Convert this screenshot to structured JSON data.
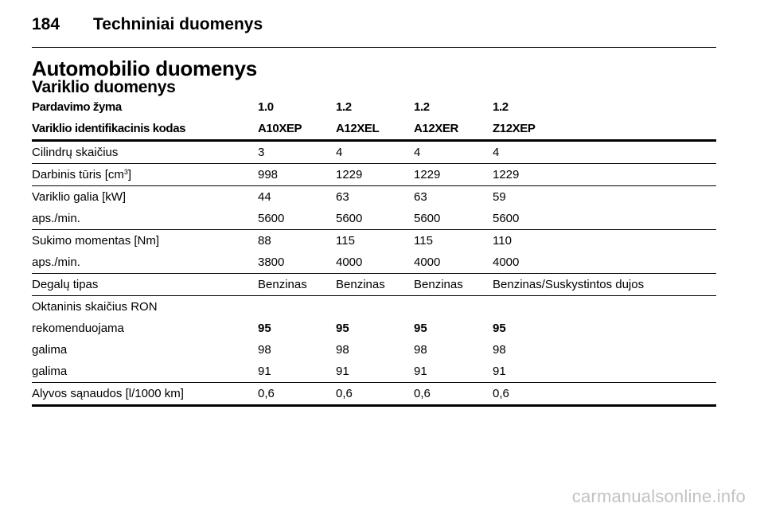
{
  "header": {
    "page_number": "184",
    "chapter_title": "Techniniai duomenys"
  },
  "section_title": "Automobilio duomenys",
  "subsection_title": "Variklio duomenys",
  "table": {
    "header_rows": [
      [
        "Pardavimo žyma",
        "1.0",
        "1.2",
        "1.2",
        "1.2"
      ],
      [
        "Variklio identifikacinis kodas",
        "A10XEP",
        "A12XEL",
        "A12XER",
        "Z12XEP"
      ]
    ],
    "displacement": {
      "label": "Darbinis tūris [cm",
      "superscript": "3",
      "label_suffix": "]",
      "values": [
        "998",
        "1229",
        "1229",
        "1229"
      ]
    },
    "rows": {
      "cylinders": [
        "Cilindrų skaičius",
        "3",
        "4",
        "4",
        "4"
      ],
      "power": [
        "Variklio galia [kW]",
        "44",
        "63",
        "63",
        "59"
      ],
      "power_rpm": [
        "aps./min.",
        "5600",
        "5600",
        "5600",
        "5600"
      ],
      "torque": [
        "Sukimo momentas [Nm]",
        "88",
        "115",
        "115",
        "110"
      ],
      "torque_rpm": [
        "aps./min.",
        "3800",
        "4000",
        "4000",
        "4000"
      ],
      "fuel": [
        "Degalų tipas",
        "Benzinas",
        "Benzinas",
        "Benzinas",
        "Benzinas/Suskystintos dujos"
      ],
      "octane_label": [
        "Oktaninis skaičius RON",
        "",
        "",
        "",
        ""
      ],
      "octane_recommended": [
        "rekomenduojama",
        "95",
        "95",
        "95",
        "95"
      ],
      "octane_possible_1": [
        "galima",
        "98",
        "98",
        "98",
        "98"
      ],
      "octane_possible_2": [
        "galima",
        "91",
        "91",
        "91",
        "91"
      ],
      "oil": [
        "Alyvos sąnaudos [l/1000 km]",
        "0,6",
        "0,6",
        "0,6",
        "0,6"
      ]
    }
  },
  "watermark": "carmanualsonline.info"
}
